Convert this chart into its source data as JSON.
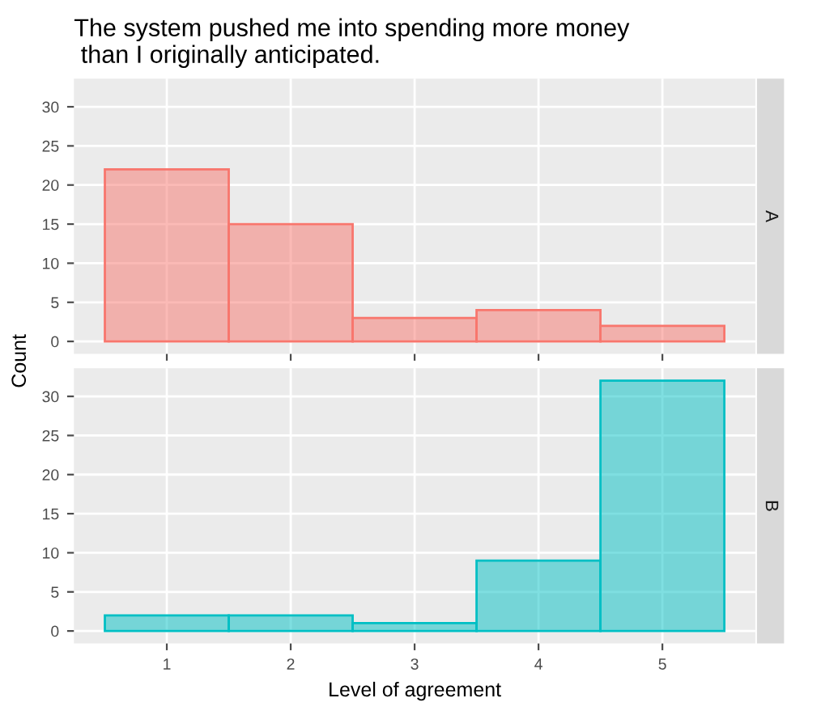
{
  "chart_data": [
    {
      "type": "histogram",
      "title": "The system pushed me into spending more money\n than I originally anticipated.",
      "ylabel": "Count",
      "annotations": [
        "A"
      ],
      "bins": [
        0.5,
        1.5,
        2.5,
        3.5,
        4.5,
        5.5
      ],
      "values": [
        22,
        15,
        3,
        4,
        2
      ],
      "color": "#f8766d",
      "xlim": [
        0.25,
        5.75
      ],
      "xticks": [
        1,
        2,
        3,
        4,
        5
      ],
      "ylim": [
        -1.6,
        33.6
      ],
      "yticks": [
        0,
        5,
        10,
        15,
        20,
        25,
        30
      ],
      "grid": true,
      "tick_labels": "y"
    },
    {
      "type": "histogram",
      "xlabel": "Level of agreement",
      "annotations": [
        "B"
      ],
      "bins": [
        0.5,
        1.5,
        2.5,
        3.5,
        4.5,
        5.5
      ],
      "values": [
        2,
        2,
        1,
        9,
        32
      ],
      "color": "#00bfc4",
      "xlim": [
        0.25,
        5.75
      ],
      "xticks": [
        1,
        2,
        3,
        4,
        5
      ],
      "ylim": [
        -1.6,
        33.6
      ],
      "yticks": [
        0,
        5,
        10,
        15,
        20,
        25,
        30
      ],
      "grid": true
    }
  ]
}
